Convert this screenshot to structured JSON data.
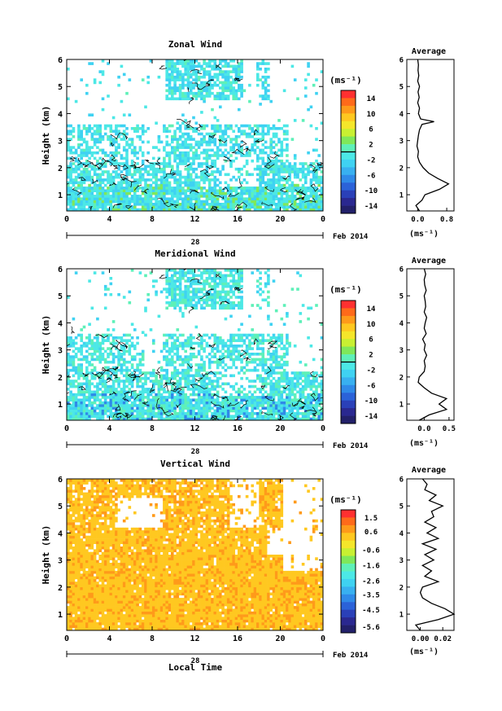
{
  "figure": {
    "xlabel": "Local Time",
    "date_day": "28",
    "date_label": "Feb 2014",
    "unit_label": "(ms⁻¹)",
    "avg_xunit": "(ms⁻¹)"
  },
  "chart_data": [
    {
      "type": "heatmap",
      "title": "Zonal Wind",
      "ylabel": "Height (km)",
      "x_ticks": [
        "0",
        "4",
        "8",
        "12",
        "16",
        "20",
        "0"
      ],
      "y_ticks": [
        "1",
        "2",
        "3",
        "4",
        "5",
        "6"
      ],
      "xlim": [
        0,
        24
      ],
      "ylim": [
        0.4,
        6.0
      ],
      "colorbar": {
        "ticks": [
          "14",
          "10",
          "6",
          "2",
          "-2",
          "-6",
          "-10",
          "-14"
        ],
        "range": [
          -16,
          16
        ]
      },
      "dominant_value": -1.5,
      "has_contours": true,
      "average_profile": {
        "title": "Average",
        "x_ticks": [
          "0.0",
          "0.8"
        ],
        "xlim": [
          -0.3,
          1.0
        ],
        "heights": [
          0.4,
          0.6,
          0.8,
          1.0,
          1.2,
          1.4,
          1.6,
          1.8,
          2.0,
          2.2,
          2.4,
          2.6,
          2.8,
          3.0,
          3.2,
          3.4,
          3.6,
          3.7,
          3.8,
          4.0,
          4.2,
          4.4,
          4.6,
          4.8,
          5.0,
          5.2,
          5.4,
          5.6,
          5.8,
          6.0
        ],
        "values": [
          0.05,
          -0.05,
          0.12,
          0.2,
          0.6,
          0.85,
          0.55,
          0.3,
          0.15,
          0.05,
          0.0,
          0.02,
          -0.02,
          0.0,
          0.02,
          0.05,
          0.12,
          0.45,
          0.08,
          0.02,
          0.05,
          0.0,
          0.04,
          0.01,
          0.05,
          0.0,
          0.03,
          0.01,
          0.02,
          0.0
        ]
      }
    },
    {
      "type": "heatmap",
      "title": "Meridional Wind",
      "ylabel": "Height (km)",
      "x_ticks": [
        "0",
        "4",
        "8",
        "12",
        "16",
        "20",
        "0"
      ],
      "y_ticks": [
        "1",
        "2",
        "3",
        "4",
        "5",
        "6"
      ],
      "xlim": [
        0,
        24
      ],
      "ylim": [
        0.4,
        6.0
      ],
      "colorbar": {
        "ticks": [
          "14",
          "10",
          "6",
          "2",
          "-2",
          "-6",
          "-10",
          "-14"
        ],
        "range": [
          -16,
          16
        ]
      },
      "dominant_value": -1.0,
      "has_contours": true,
      "average_profile": {
        "title": "Average",
        "x_ticks": [
          "0.0",
          "0.5"
        ],
        "xlim": [
          -0.35,
          0.6
        ],
        "heights": [
          0.4,
          0.6,
          0.8,
          1.0,
          1.2,
          1.4,
          1.6,
          1.8,
          2.0,
          2.2,
          2.4,
          2.6,
          2.8,
          3.0,
          3.2,
          3.4,
          3.6,
          3.8,
          4.0,
          4.2,
          4.4,
          4.6,
          4.8,
          5.0,
          5.2,
          5.4,
          5.6,
          5.8,
          6.0
        ],
        "values": [
          -0.1,
          0.1,
          0.45,
          0.3,
          0.45,
          0.15,
          0.0,
          -0.12,
          -0.1,
          0.0,
          0.02,
          0.0,
          0.05,
          0.0,
          0.02,
          -0.03,
          0.04,
          0.0,
          0.02,
          0.05,
          0.0,
          0.03,
          0.02,
          0.0,
          0.04,
          0.01,
          0.0,
          0.03,
          0.0
        ]
      }
    },
    {
      "type": "heatmap",
      "title": "Vertical Wind",
      "ylabel": "Height (km)",
      "x_ticks": [
        "0",
        "4",
        "8",
        "12",
        "16",
        "20",
        "0"
      ],
      "y_ticks": [
        "1",
        "2",
        "3",
        "4",
        "5",
        "6"
      ],
      "xlim": [
        0,
        24
      ],
      "ylim": [
        0.4,
        6.0
      ],
      "colorbar": {
        "ticks": [
          "1.5",
          "0.6",
          "-0.6",
          "-1.6",
          "-2.6",
          "-3.5",
          "-4.5",
          "-5.6"
        ],
        "range": [
          -6,
          2
        ]
      },
      "dominant_value": 0.4,
      "has_contours": false,
      "average_profile": {
        "title": "Average",
        "x_ticks": [
          "0.00",
          "0.02"
        ],
        "xlim": [
          -0.012,
          0.03
        ],
        "heights": [
          0.4,
          0.6,
          0.8,
          1.0,
          1.2,
          1.4,
          1.6,
          1.8,
          2.0,
          2.2,
          2.4,
          2.6,
          2.8,
          3.0,
          3.2,
          3.4,
          3.6,
          3.8,
          4.0,
          4.2,
          4.4,
          4.6,
          4.8,
          5.0,
          5.2,
          5.4,
          5.6,
          5.8,
          6.0
        ],
        "values": [
          0.0,
          -0.004,
          0.016,
          0.03,
          0.022,
          0.01,
          0.002,
          0.0,
          0.002,
          0.016,
          0.004,
          0.01,
          0.002,
          0.012,
          0.004,
          0.014,
          0.002,
          0.016,
          0.006,
          0.014,
          0.004,
          0.012,
          0.01,
          0.02,
          0.008,
          0.014,
          0.004,
          0.006,
          0.002
        ]
      }
    }
  ]
}
